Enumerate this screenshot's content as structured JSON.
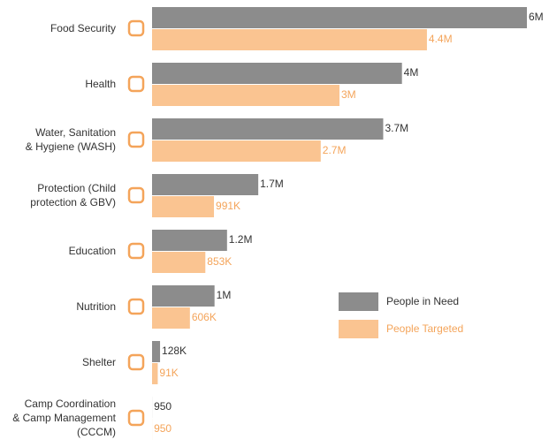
{
  "chart_data": {
    "type": "bar",
    "orientation": "horizontal",
    "categories": [
      "Food Security",
      "Health",
      "Water, Sanitation\n& Hygiene (WASH)",
      "Protection (Child\nprotection & GBV)",
      "Education",
      "Nutrition",
      "Shelter",
      "Camp Coordination\n& Camp Management\n(CCCM)"
    ],
    "series": [
      {
        "name": "People in Need",
        "color": "#8c8c8c",
        "label_color": "#333333",
        "values": [
          6000000,
          4000000,
          3700000,
          1700000,
          1200000,
          1000000,
          128000,
          950
        ],
        "value_labels": [
          "6M",
          "4M",
          "3.7M",
          "1.7M",
          "1.2M",
          "1M",
          "128K",
          "950"
        ]
      },
      {
        "name": "People Targeted",
        "color": "#fac491",
        "label_color": "#f4a45a",
        "values": [
          4400000,
          3000000,
          2700000,
          991000,
          853000,
          606000,
          91000,
          950
        ],
        "value_labels": [
          "4.4M",
          "3M",
          "2.7M",
          "991K",
          "853K",
          "606K",
          "91K",
          "950"
        ]
      }
    ],
    "xlim": [
      0,
      6000000
    ],
    "legend": "center-right"
  }
}
